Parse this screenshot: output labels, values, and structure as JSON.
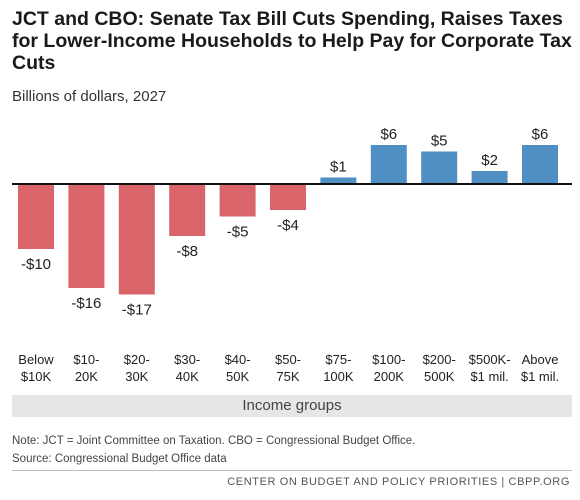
{
  "title": "JCT and CBO: Senate Tax Bill Cuts Spending, Raises Taxes for Lower-Income Households to Help Pay for Corporate Tax Cuts",
  "subtitle": "Billions of dollars, 2027",
  "note": "Note: JCT = Joint Committee on Taxation.  CBO = Congressional Budget Office.",
  "source": "Source: Congressional Budget Office data",
  "footer": "CENTER ON BUDGET AND POLICY PRIORITIES | CBPP.ORG",
  "colors": {
    "negative": "#d9656b",
    "positive": "#4f8fc3",
    "axis": "#111111"
  },
  "chart_data": {
    "type": "bar",
    "xlabel": "Income groups",
    "categories": [
      [
        "Below",
        "$10K"
      ],
      [
        "$10-",
        "20K"
      ],
      [
        "$20-",
        "30K"
      ],
      [
        "$30-",
        "40K"
      ],
      [
        "$40-",
        "50K"
      ],
      [
        "$50-",
        "75K"
      ],
      [
        "$75-",
        "100K"
      ],
      [
        "$100-",
        "200K"
      ],
      [
        "$200-",
        "500K"
      ],
      [
        "$500K-",
        "$1 mil."
      ],
      [
        "Above",
        "$1 mil."
      ]
    ],
    "values": [
      -10,
      -16,
      -17,
      -8,
      -5,
      -4,
      1,
      6,
      5,
      2,
      6
    ],
    "data_labels": [
      "-$10",
      "-$16",
      "-$17",
      "-$8",
      "-$5",
      "-$4",
      "$1",
      "$6",
      "$5",
      "$2",
      "$6"
    ],
    "ylim": [
      -17,
      6
    ]
  }
}
